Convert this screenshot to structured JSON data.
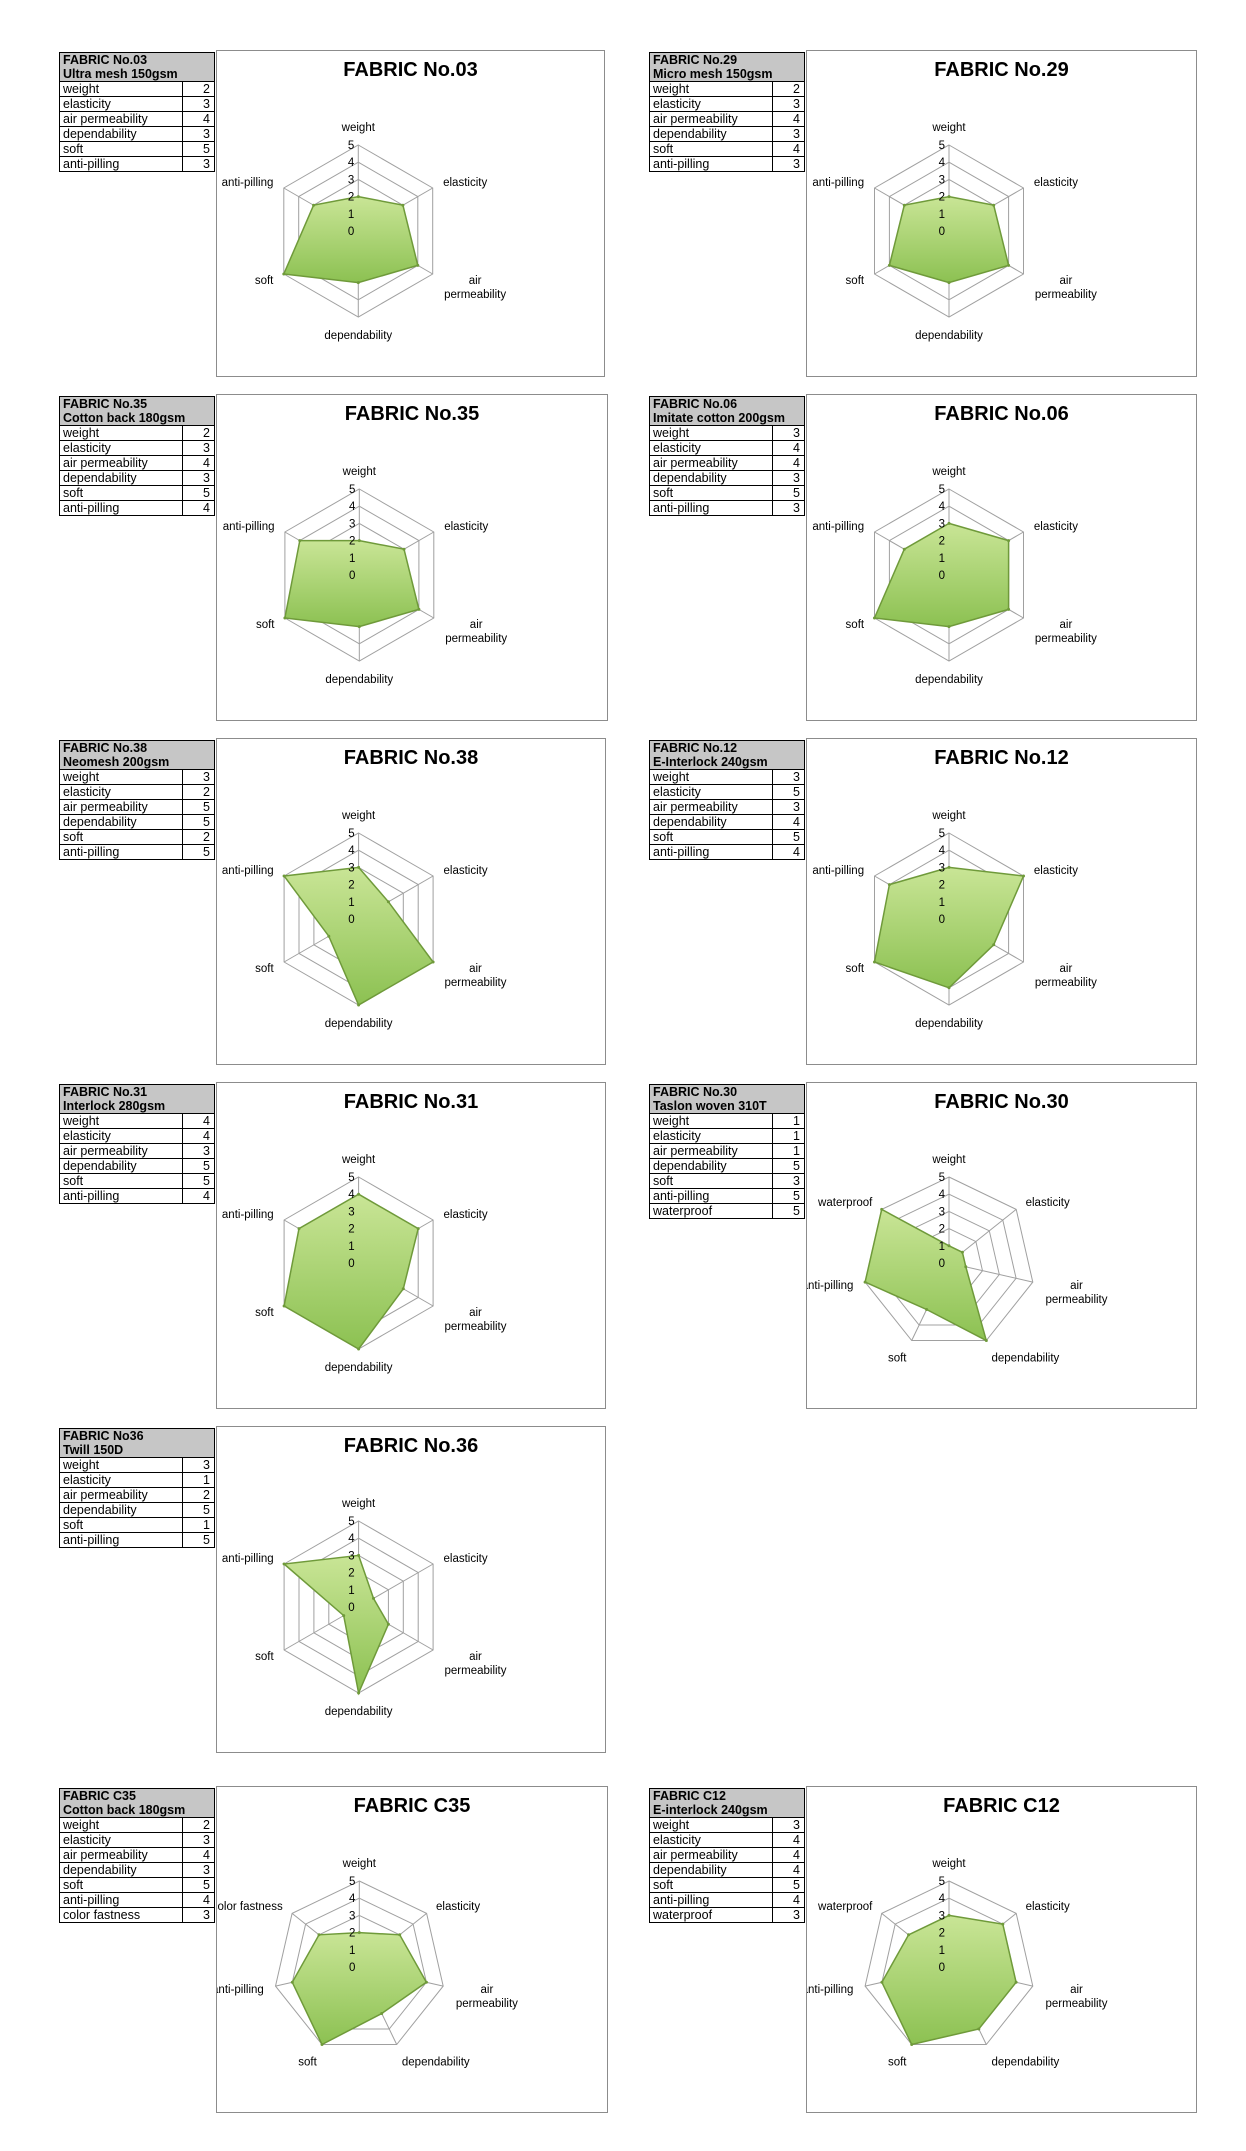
{
  "chart_data": [
    {
      "type": "radar",
      "title": "FABRIC No.03",
      "table_title": "FABRIC No.03",
      "table_subtitle": "Ultra mesh 150gsm",
      "axes": [
        "weight",
        "elasticity",
        "air permeability",
        "dependability",
        "soft",
        "anti-pilling"
      ],
      "values": [
        2,
        3,
        4,
        3,
        5,
        3
      ],
      "rlim": [
        0,
        5
      ],
      "ticks": [
        "0",
        "1",
        "2",
        "3",
        "4",
        "5"
      ]
    },
    {
      "type": "radar",
      "title": "FABRIC No.29",
      "table_title": "FABRIC No.29",
      "table_subtitle": "Micro mesh 150gsm",
      "axes": [
        "weight",
        "elasticity",
        "air permeability",
        "dependability",
        "soft",
        "anti-pilling"
      ],
      "values": [
        2,
        3,
        4,
        3,
        4,
        3
      ],
      "rlim": [
        0,
        5
      ],
      "ticks": [
        "0",
        "1",
        "2",
        "3",
        "4",
        "5"
      ]
    },
    {
      "type": "radar",
      "title": "FABRIC No.35",
      "table_title": "FABRIC No.35",
      "table_subtitle": "Cotton back 180gsm",
      "axes": [
        "weight",
        "elasticity",
        "air permeability",
        "dependability",
        "soft",
        "anti-pilling"
      ],
      "values": [
        2,
        3,
        4,
        3,
        5,
        4
      ],
      "rlim": [
        0,
        5
      ],
      "ticks": [
        "0",
        "1",
        "2",
        "3",
        "4",
        "5"
      ]
    },
    {
      "type": "radar",
      "title": "FABRIC No.06",
      "table_title": "FABRIC No.06",
      "table_subtitle": "Imitate cotton 200gsm",
      "axes": [
        "weight",
        "elasticity",
        "air permeability",
        "dependability",
        "soft",
        "anti-pilling"
      ],
      "values": [
        3,
        4,
        4,
        3,
        5,
        3
      ],
      "rlim": [
        0,
        5
      ],
      "ticks": [
        "0",
        "1",
        "2",
        "3",
        "4",
        "5"
      ]
    },
    {
      "type": "radar",
      "title": "FABRIC No.38",
      "table_title": "FABRIC No.38",
      "table_subtitle": "Neomesh 200gsm",
      "axes": [
        "weight",
        "elasticity",
        "air permeability",
        "dependability",
        "soft",
        "anti-pilling"
      ],
      "values": [
        3,
        2,
        5,
        5,
        2,
        5
      ],
      "rlim": [
        0,
        5
      ],
      "ticks": [
        "0",
        "1",
        "2",
        "3",
        "4",
        "5"
      ]
    },
    {
      "type": "radar",
      "title": "FABRIC No.12",
      "table_title": "FABRIC No.12",
      "table_subtitle": "E-Interlock 240gsm",
      "axes": [
        "weight",
        "elasticity",
        "air permeability",
        "dependability",
        "soft",
        "anti-pilling"
      ],
      "values": [
        3,
        5,
        3,
        4,
        5,
        4
      ],
      "rlim": [
        0,
        5
      ],
      "ticks": [
        "0",
        "1",
        "2",
        "3",
        "4",
        "5"
      ]
    },
    {
      "type": "radar",
      "title": "FABRIC No.31",
      "table_title": "FABRIC No.31",
      "table_subtitle": "Interlock 280gsm",
      "axes": [
        "weight",
        "elasticity",
        "air permeability",
        "dependability",
        "soft",
        "anti-pilling"
      ],
      "values": [
        4,
        4,
        3,
        5,
        5,
        4
      ],
      "rlim": [
        0,
        5
      ],
      "ticks": [
        "0",
        "1",
        "2",
        "3",
        "4",
        "5"
      ]
    },
    {
      "type": "radar",
      "title": "FABRIC No.30",
      "table_title": "FABRIC No.30",
      "table_subtitle": "Taslon woven 310T",
      "axes": [
        "weight",
        "elasticity",
        "air permeability",
        "dependability",
        "soft",
        "anti-pilling",
        "waterproof"
      ],
      "values": [
        1,
        1,
        1,
        5,
        3,
        5,
        5
      ],
      "rlim": [
        0,
        5
      ],
      "ticks": [
        "0",
        "1",
        "2",
        "3",
        "4",
        "5"
      ]
    },
    {
      "type": "radar",
      "title": "FABRIC No.36",
      "table_title": "FABRIC No36",
      "table_subtitle": "Twill 150D",
      "axes": [
        "weight",
        "elasticity",
        "air permeability",
        "dependability",
        "soft",
        "anti-pilling"
      ],
      "values": [
        3,
        1,
        2,
        5,
        1,
        5
      ],
      "rlim": [
        0,
        5
      ],
      "ticks": [
        "0",
        "1",
        "2",
        "3",
        "4",
        "5"
      ]
    },
    {
      "type": "radar",
      "title": "FABRIC C35",
      "table_title": "FABRIC C35",
      "table_subtitle": "Cotton back 180gsm",
      "axes": [
        "weight",
        "elasticity",
        "air permeability",
        "dependability",
        "soft",
        "anti-pilling",
        "color fastness"
      ],
      "values": [
        2,
        3,
        4,
        3,
        5,
        4,
        3
      ],
      "rlim": [
        0,
        5
      ],
      "ticks": [
        "0",
        "1",
        "2",
        "3",
        "4",
        "5"
      ]
    },
    {
      "type": "radar",
      "title": "FABRIC C12",
      "table_title": "FABRIC C12",
      "table_subtitle": "E-interlock 240gsm",
      "axes": [
        "weight",
        "elasticity",
        "air permeability",
        "dependability",
        "soft",
        "anti-pilling",
        "waterproof"
      ],
      "values": [
        3,
        4,
        4,
        4,
        5,
        4,
        3
      ],
      "rlim": [
        0,
        5
      ],
      "ticks": [
        "0",
        "1",
        "2",
        "3",
        "4",
        "5"
      ]
    }
  ],
  "colors": {
    "fill": "#8cc152",
    "fill_dark": "#6f9a3a",
    "fill_light": "#c9e596",
    "grid": "#a0a0a0",
    "table_header": "#c6c6c6"
  }
}
